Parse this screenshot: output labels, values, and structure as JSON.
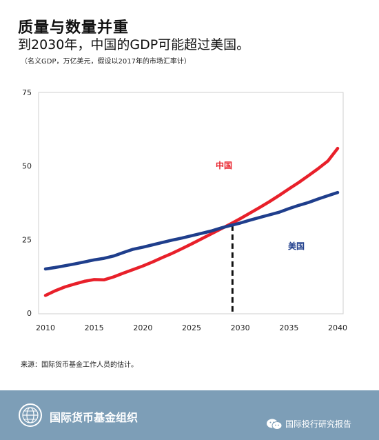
{
  "header": {
    "title": "质量与数量并重",
    "subtitle": "到2030年，中国的GDP可能超过美国。",
    "note": "（名义GDP，万亿美元，假设以2017年的市场汇率计）"
  },
  "chart_data": {
    "type": "line",
    "title": "",
    "xlabel": "",
    "ylabel": "",
    "xlim": [
      2010,
      2040
    ],
    "ylim": [
      0,
      75
    ],
    "x_ticks": [
      "2010",
      "2015",
      "2020",
      "2025",
      "2030",
      "2035",
      "2040"
    ],
    "y_ticks": [
      "0",
      "25",
      "50",
      "75"
    ],
    "grid": false,
    "series": [
      {
        "name": "中国",
        "color": "#e8202a",
        "x": [
          2010,
          2011,
          2012,
          2013,
          2014,
          2015,
          2016,
          2017,
          2018,
          2019,
          2020,
          2021,
          2022,
          2023,
          2024,
          2025,
          2026,
          2027,
          2028,
          2029,
          2030,
          2031,
          2032,
          2033,
          2034,
          2035,
          2036,
          2037,
          2038,
          2039,
          2040
        ],
        "values": [
          6,
          7.6,
          8.9,
          9.9,
          10.8,
          11.4,
          11.3,
          12.3,
          13.6,
          14.8,
          16,
          17.4,
          18.9,
          20.3,
          21.9,
          23.5,
          25.2,
          26.9,
          28.6,
          30.3,
          32.1,
          34,
          35.9,
          37.9,
          40,
          42.2,
          44.4,
          46.7,
          49.1,
          51.7,
          56
        ]
      },
      {
        "name": "美国",
        "color": "#1f3e8c",
        "x": [
          2010,
          2011,
          2012,
          2013,
          2014,
          2015,
          2016,
          2017,
          2018,
          2019,
          2020,
          2021,
          2022,
          2023,
          2024,
          2025,
          2026,
          2027,
          2028,
          2029,
          2030,
          2031,
          2032,
          2033,
          2034,
          2035,
          2036,
          2037,
          2038,
          2039,
          2040
        ],
        "values": [
          15,
          15.5,
          16.1,
          16.7,
          17.4,
          18.1,
          18.6,
          19.4,
          20.6,
          21.7,
          22.4,
          23.2,
          24,
          24.8,
          25.5,
          26.3,
          27.1,
          27.9,
          28.9,
          29.8,
          30.6,
          31.6,
          32.5,
          33.4,
          34.3,
          35.5,
          36.6,
          37.6,
          38.8,
          39.9,
          41
        ]
      }
    ],
    "crossover": {
      "x": 2029.2,
      "y": 29.8,
      "style": "dashed",
      "color": "#111111"
    }
  },
  "source": "来源：国际货币基金工作人员的估计。",
  "footer": {
    "org_name": "国际货币基金组织",
    "account_name": "国际投行研究报告",
    "background": "#7d9eb7",
    "logo_icon": "imf-globe-logo-icon",
    "wechat_icon": "wechat-icon"
  }
}
